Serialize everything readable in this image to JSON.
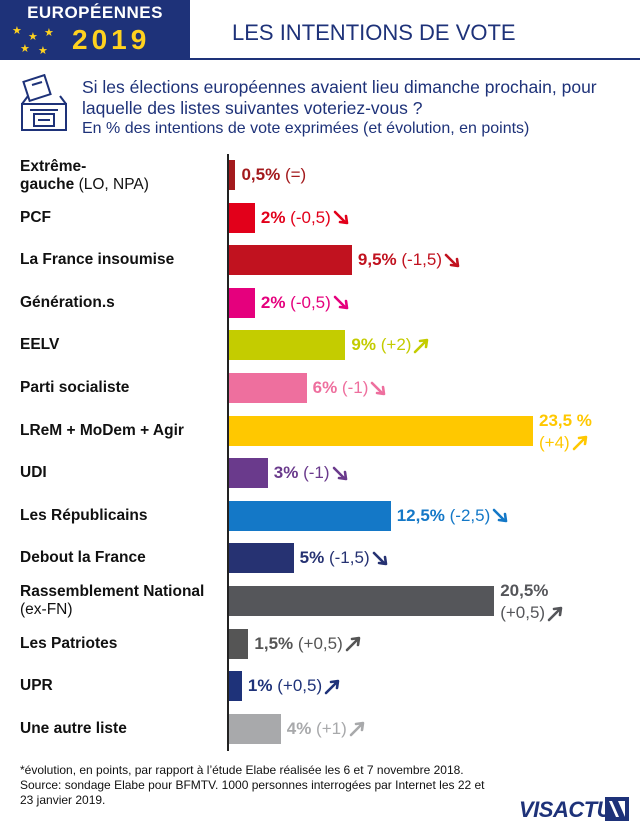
{
  "header": {
    "badge_top": "EUROPÉENNES",
    "badge_year": "2019",
    "title": "LES INTENTIONS DE VOTE"
  },
  "question": "Si les élections européennes avaient lieu dimanche prochain, pour laquelle des listes suivantes voteriez-vous ?",
  "subtitle": "En % des intentions de vote exprimées (et évolution, en points)",
  "chart_data": {
    "type": "bar",
    "orientation": "horizontal",
    "unit": "%",
    "xlim": [
      0,
      24
    ],
    "categories": [
      {
        "label_bold": "Extrême-",
        "label_bold2": "gauche",
        "label_normal": " (LO, NPA)"
      },
      {
        "label_bold": "PCF"
      },
      {
        "label_bold": "La France insoumise"
      },
      {
        "label_bold": "Génération.s"
      },
      {
        "label_bold": "EELV"
      },
      {
        "label_bold": "Parti socialiste"
      },
      {
        "label_bold": "LReM + MoDem + Agir"
      },
      {
        "label_bold": "UDI"
      },
      {
        "label_bold": "Les Républicains"
      },
      {
        "label_bold": "Debout la France"
      },
      {
        "label_bold": "Rassemblement National",
        "label_normal2": "(ex-FN)"
      },
      {
        "label_bold": "Les Patriotes"
      },
      {
        "label_bold": "UPR"
      },
      {
        "label_bold": "Une autre liste"
      }
    ],
    "values": [
      0.5,
      2,
      9.5,
      2,
      9,
      6,
      23.5,
      3,
      12.5,
      5,
      20.5,
      1.5,
      1,
      4
    ],
    "value_labels": [
      "0,5%",
      "2%",
      "9,5%",
      "2%",
      "9%",
      "6%",
      "23,5 %",
      "3%",
      "12,5%",
      "5%",
      "20,5%",
      "1,5%",
      "1%",
      "4%"
    ],
    "changes": [
      "(=)",
      "(-0,5)",
      "(-1,5)",
      "(-0,5)",
      "(+2)",
      "(-1)",
      "(+4)",
      "(-1)",
      "(-2,5)",
      "(-1,5)",
      "(+0,5)",
      "(+0,5)",
      "(+0,5)",
      "(+1)"
    ],
    "trend": [
      "flat",
      "down",
      "down",
      "down",
      "up",
      "down",
      "up",
      "down",
      "down",
      "down",
      "up",
      "up",
      "up",
      "up"
    ],
    "colors": [
      "#a31a1d",
      "#e2001a",
      "#c1121f",
      "#e5007d",
      "#c4cc00",
      "#ee6f9e",
      "#ffc800",
      "#6a3a8c",
      "#1478c7",
      "#263272",
      "#55565a",
      "#555555",
      "#1e3279",
      "#a8a9ab"
    ]
  },
  "footnote": "*évolution, en points, par rapport à l’étude Elabe réalisée les 6 et 7 novembre 2018. Source: sondage Elabe pour BFMTV. 1000 personnes interrogées par Internet les 22 et 23 janvier 2019.",
  "logo": {
    "text": "VISACTU",
    "color": "#1e3279"
  }
}
